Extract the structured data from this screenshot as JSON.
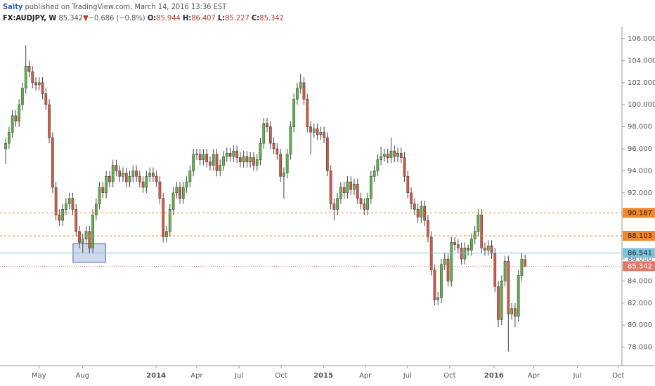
{
  "header": {
    "author": "Salty",
    "published": "published on TradingView.com, March 14, 2016 13:36 EST",
    "symbol": "FX:AUDJPY, W",
    "last": "85.342",
    "arrow": "▼",
    "change": "−0.686 (−0.8%)",
    "ohlc": [
      {
        "key": "O:",
        "value": "85.944"
      },
      {
        "key": "H:",
        "value": "86.407"
      },
      {
        "key": "L:",
        "value": "85.227"
      },
      {
        "key": "C:",
        "value": "85.342"
      }
    ]
  },
  "chart_data": {
    "type": "candlestick",
    "categories": [
      null,
      null,
      null,
      null,
      null,
      null,
      null,
      null,
      null,
      null,
      null,
      null,
      null,
      null,
      null,
      null,
      null,
      null,
      null,
      null,
      null,
      null,
      null,
      null,
      null,
      null,
      null,
      null,
      null,
      null,
      null,
      null,
      null,
      null,
      null,
      null,
      null,
      null,
      null,
      null,
      null,
      null,
      null,
      null,
      null,
      null,
      null,
      null,
      null,
      null,
      null,
      null,
      null,
      null,
      null,
      null,
      null,
      null,
      null,
      null,
      null,
      null,
      null,
      null,
      null,
      null,
      null,
      null,
      null,
      null,
      null,
      null,
      null,
      null,
      null,
      null,
      null,
      null,
      null,
      null,
      null,
      null,
      null,
      null,
      null,
      null,
      null,
      null,
      null,
      null,
      null,
      null,
      null,
      null,
      null,
      null,
      null,
      null,
      null,
      null,
      null,
      null,
      null,
      null,
      null,
      null,
      null,
      null,
      null,
      null,
      null,
      null,
      null,
      null,
      null,
      null,
      null,
      null,
      null,
      null,
      null,
      null,
      null,
      null,
      null,
      null,
      null,
      null,
      null,
      null,
      null,
      null,
      null,
      null,
      null,
      null,
      null,
      null,
      null,
      null,
      null,
      null,
      null,
      null,
      null,
      null,
      null,
      null,
      null,
      null,
      null,
      null,
      null,
      null,
      null,
      null
    ],
    "open": [
      96,
      96.5,
      97.5,
      99,
      98.5,
      100,
      101.5,
      103.5,
      103,
      102,
      101.8,
      102,
      101,
      100,
      97,
      92.5,
      90,
      89.5,
      90.5,
      91,
      91.5,
      90.5,
      88.5,
      87.5,
      87.8,
      88.5,
      87,
      90,
      91,
      92.5,
      92,
      93.5,
      93,
      94.5,
      94,
      93.5,
      93.8,
      93,
      93.5,
      94,
      93.5,
      93,
      92.5,
      93.5,
      93.8,
      93.5,
      93,
      91.5,
      88,
      88.5,
      90.5,
      92,
      92.5,
      91.5,
      92.5,
      93,
      94,
      95.5,
      95.5,
      95,
      95.5,
      94.8,
      94.5,
      95.5,
      94,
      94.5,
      95.3,
      95.6,
      95.3,
      95.8,
      95.2,
      94.8,
      95.3,
      94.8,
      95.2,
      94.5,
      95,
      96.5,
      98.3,
      98,
      96.5,
      96,
      95.5,
      93.5,
      93.8,
      95.5,
      98,
      100.5,
      101.5,
      102,
      100.5,
      98,
      97.5,
      97.8,
      97.3,
      97.5,
      97,
      94,
      91,
      90.5,
      91.5,
      92.5,
      92,
      93,
      92.3,
      92.8,
      91.5,
      91,
      90.5,
      91.5,
      93.5,
      94,
      95,
      95.3,
      95.5,
      95.2,
      95.8,
      95.3,
      95.6,
      95.2,
      93.5,
      92,
      91,
      90.5,
      89.8,
      90.8,
      89.5,
      88,
      85,
      82.3,
      82.5,
      85.5,
      86,
      84,
      87.5,
      87.3,
      87,
      86,
      87,
      86.8,
      87.8,
      88.5,
      90,
      87,
      86.8,
      87.2,
      86.5,
      83.5,
      80.5,
      84,
      85.8,
      81,
      81.5,
      80.8,
      84.5,
      85.944
    ],
    "high": [
      97,
      98,
      99.5,
      99.5,
      100.5,
      102,
      105.4,
      104,
      103.5,
      102.5,
      102.5,
      102.5,
      101.5,
      100.5,
      97.5,
      93,
      90.5,
      91,
      91.5,
      92,
      92,
      91,
      89,
      88.3,
      89,
      89,
      90.5,
      91.5,
      93,
      93,
      94,
      94,
      95,
      95,
      94.5,
      94.3,
      94.3,
      94,
      94.5,
      94.5,
      94,
      93.5,
      94,
      94.3,
      94.3,
      94,
      93.5,
      92,
      89,
      91,
      92.5,
      93,
      93,
      93,
      93.5,
      94.5,
      96,
      96,
      96,
      96,
      96,
      95.3,
      96,
      96,
      95,
      95.8,
      96.1,
      96.1,
      96.3,
      96.3,
      95.7,
      95.8,
      95.8,
      95.7,
      95.7,
      95.5,
      97,
      98.8,
      98.8,
      98.5,
      97,
      96.5,
      96,
      94.3,
      96,
      98.5,
      101,
      102,
      102.8,
      102.5,
      101,
      98.5,
      98.3,
      98.3,
      98,
      98,
      97.5,
      94.5,
      91.5,
      92,
      93,
      93,
      93.5,
      93.5,
      93.3,
      93.3,
      92,
      91.5,
      92,
      94,
      94.5,
      95.5,
      96.2,
      96,
      96,
      97,
      96.3,
      96.1,
      96.1,
      95.7,
      94,
      92.5,
      91.5,
      91,
      91.3,
      91.3,
      90,
      88.5,
      85.5,
      83,
      86,
      86.5,
      86.5,
      88,
      88,
      87.8,
      87.5,
      87.5,
      87.3,
      88.3,
      89,
      90.5,
      90.5,
      87.5,
      87.7,
      87.7,
      87,
      84,
      84.5,
      86.3,
      86.3,
      82,
      82,
      85,
      86.5,
      86.407
    ],
    "low": [
      94.6,
      96,
      97,
      98,
      98,
      99.5,
      101,
      102.5,
      101.5,
      101.3,
      101.3,
      100.5,
      99.5,
      96.5,
      92,
      89.5,
      89,
      89,
      90,
      90.5,
      90,
      88,
      87,
      86.5,
      87.3,
      86.5,
      86.5,
      89.5,
      90.5,
      91.5,
      91.5,
      92.5,
      92.5,
      93.5,
      93,
      93,
      92.5,
      92.5,
      93,
      93,
      92.5,
      92,
      92,
      93,
      93,
      92.5,
      91,
      87.5,
      87.5,
      88,
      90,
      91.5,
      91,
      91,
      92,
      92.5,
      93.5,
      95,
      94.5,
      94.5,
      94.3,
      94,
      94,
      93.5,
      93.5,
      94,
      94.8,
      94.8,
      94.8,
      94.7,
      94.3,
      94.3,
      94.3,
      94.3,
      94,
      94,
      94.5,
      96,
      97.5,
      96,
      95.5,
      95,
      93,
      91.5,
      93.3,
      95,
      97.5,
      100,
      101,
      100,
      97.5,
      95.5,
      97,
      96.8,
      96.8,
      96.5,
      93.5,
      90.5,
      89.5,
      90,
      91,
      91.5,
      91.5,
      91.8,
      91.8,
      91,
      90.5,
      90,
      90,
      91,
      93,
      93.5,
      94.5,
      94.8,
      94.7,
      94.7,
      94.8,
      94.8,
      94.7,
      93,
      91.5,
      90.5,
      90,
      89.3,
      89.3,
      89,
      87.5,
      84.5,
      81.8,
      81.8,
      82,
      85,
      83.5,
      83.5,
      86.8,
      86.5,
      85.5,
      85.5,
      86.3,
      86.3,
      87.3,
      88,
      86.5,
      86.3,
      86.3,
      86,
      83,
      79.8,
      80,
      83.5,
      77.6,
      80.5,
      79.8,
      80.3,
      84,
      85.227
    ],
    "close": [
      96.5,
      97.5,
      99,
      98.5,
      100,
      101.5,
      103.5,
      103,
      102,
      101.8,
      102,
      101,
      100,
      97,
      92.5,
      90,
      89.5,
      90.5,
      91,
      91.5,
      90.5,
      88.5,
      87.5,
      87.8,
      88.5,
      87,
      90,
      91,
      92.5,
      92,
      93.5,
      93,
      94.5,
      94,
      93.5,
      93.8,
      93,
      93.5,
      94,
      93.5,
      93,
      92.5,
      93.5,
      93.8,
      93.5,
      93,
      91.5,
      88,
      88.5,
      90.5,
      92,
      92.5,
      91.5,
      92.5,
      93,
      94,
      95.5,
      95.5,
      95,
      95.5,
      94.8,
      94.5,
      95.5,
      94,
      94.5,
      95.3,
      95.6,
      95.3,
      95.8,
      95.2,
      94.8,
      95.3,
      94.8,
      95.2,
      94.5,
      95,
      96.5,
      98.3,
      98,
      96.5,
      96,
      95.5,
      93.5,
      93.8,
      95.5,
      98,
      100.5,
      101.5,
      102,
      100.5,
      98,
      97.5,
      97.8,
      97.3,
      97.5,
      97,
      94,
      91,
      90.5,
      91.5,
      92.5,
      92,
      93,
      92.3,
      92.8,
      91.5,
      91,
      90.5,
      91.5,
      93.5,
      94,
      95,
      95.3,
      95.5,
      95.2,
      95.8,
      95.3,
      95.6,
      95.2,
      93.5,
      92,
      91,
      90.5,
      89.8,
      90.8,
      89.5,
      88,
      85,
      82.3,
      82.5,
      85.5,
      86,
      84,
      87.5,
      87.3,
      87,
      86,
      87,
      86.8,
      87.8,
      88.5,
      90,
      87,
      86.8,
      87.2,
      86.5,
      83.5,
      80.5,
      84,
      85.8,
      81,
      81.5,
      80.8,
      84.5,
      86,
      85.342
    ],
    "up_color": "#5fb54a",
    "down_color": "#d25a47",
    "xlim": [
      -1.7,
      183.9
    ],
    "xticks": [
      {
        "value": 9.9,
        "label": "May"
      },
      {
        "value": 22.9,
        "label": "Aug"
      },
      {
        "value": 44.9,
        "label": "2014"
      },
      {
        "value": 57,
        "label": "Apr"
      },
      {
        "value": 69.6,
        "label": "Jul"
      },
      {
        "value": 82.2,
        "label": "Oct"
      },
      {
        "value": 94.8,
        "label": "2015"
      },
      {
        "value": 107.3,
        "label": "Apr"
      },
      {
        "value": 119.9,
        "label": "Jul"
      },
      {
        "value": 132.5,
        "label": "Oct"
      },
      {
        "value": 145.7,
        "label": "2016"
      },
      {
        "value": 157.6,
        "label": "Apr"
      },
      {
        "value": 170.6,
        "label": "Jul"
      },
      {
        "value": 182.8,
        "label": "Oct"
      }
    ],
    "ylim": [
      76.32,
      107.08
    ],
    "yticks": [
      {
        "value": 78,
        "label": "78.000"
      },
      {
        "value": 80,
        "label": "80.000"
      },
      {
        "value": 82,
        "label": "82.000"
      },
      {
        "value": 84,
        "label": "84.000"
      },
      {
        "value": 86,
        "label": "86.000"
      },
      {
        "value": 88,
        "label": "88.000"
      },
      {
        "value": 90,
        "label": "90.000"
      },
      {
        "value": 92,
        "label": "92.000"
      },
      {
        "value": 94,
        "label": "94.000"
      },
      {
        "value": 96,
        "label": "96.000"
      },
      {
        "value": 98,
        "label": "98.000"
      },
      {
        "value": 100,
        "label": "100.000"
      },
      {
        "value": 102,
        "label": "102.000"
      },
      {
        "value": 104,
        "label": "104.000"
      },
      {
        "value": 106,
        "label": "106.000"
      }
    ],
    "hlines": [
      {
        "value": 90.187,
        "color": "#f0892d",
        "dash": "3,3",
        "text_color": "#222222"
      },
      {
        "value": 88.103,
        "color": "#f0892d",
        "dash": "3,3",
        "text_color": "#222222"
      },
      {
        "value": 86.541,
        "color": "#7cc4dc",
        "dash": "none",
        "text_color": "#222222"
      },
      {
        "value": 85.342,
        "color": "#e07a68",
        "dash": "1,2",
        "text_color": "#ffffff"
      }
    ],
    "rectangle": {
      "x": [
        20.1,
        29.8
      ],
      "y": [
        85.7,
        87.4
      ],
      "color": "#3f66b0"
    }
  }
}
